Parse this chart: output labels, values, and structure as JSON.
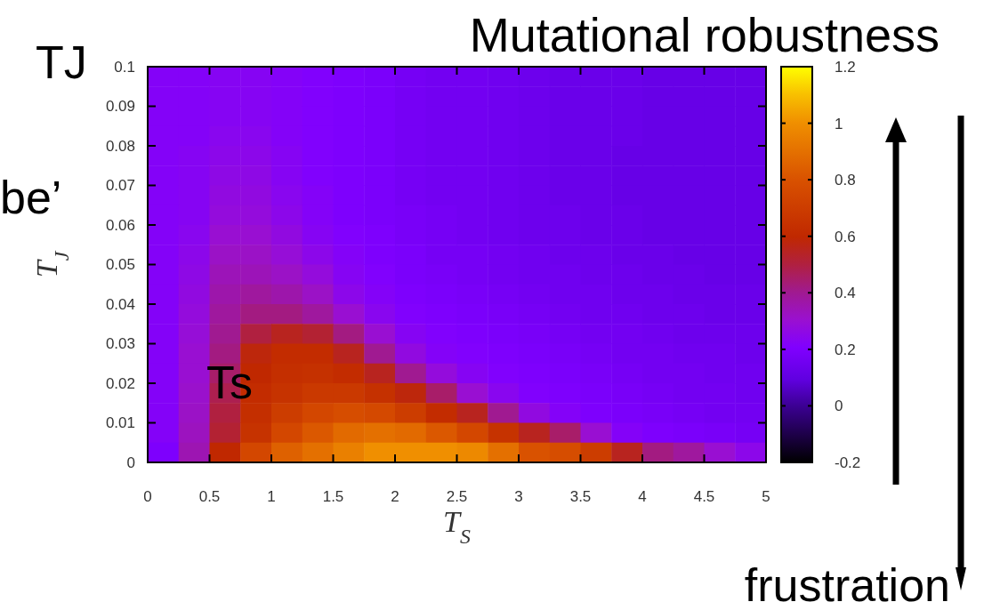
{
  "chart_data": {
    "type": "heatmap",
    "title": "Mutational robustness",
    "xlabel": "T$_{S}$",
    "ylabel": "T$_{J}$",
    "annotations": [
      "TJ",
      "be’",
      "Ts",
      "frustration"
    ],
    "x": [
      0.125,
      0.375,
      0.625,
      0.875,
      1.125,
      1.375,
      1.625,
      1.875,
      2.125,
      2.375,
      2.625,
      2.875,
      3.125,
      3.375,
      3.625,
      3.875,
      4.125,
      4.375,
      4.625,
      4.875
    ],
    "y": [
      0.0975,
      0.0925,
      0.0875,
      0.0825,
      0.0775,
      0.0725,
      0.0675,
      0.0625,
      0.0575,
      0.0525,
      0.0475,
      0.0425,
      0.0375,
      0.0325,
      0.0275,
      0.0225,
      0.0175,
      0.0125,
      0.0075,
      0.0025
    ],
    "xlim": [
      0,
      5
    ],
    "xticks": [
      0,
      0.5,
      1,
      1.5,
      2,
      2.5,
      3,
      3.5,
      4,
      4.5,
      5
    ],
    "ylim": [
      0,
      0.1
    ],
    "yticks": [
      0,
      0.01,
      0.02,
      0.03,
      0.04,
      0.05,
      0.06,
      0.07,
      0.08,
      0.09,
      0.1
    ],
    "clim": [
      -0.2,
      1.2
    ],
    "cticks": [
      -0.2,
      0,
      0.2,
      0.4,
      0.6,
      0.8,
      1,
      1.2
    ],
    "cells": [
      [
        0.22,
        0.22,
        0.23,
        0.23,
        0.22,
        0.21,
        0.2,
        0.19,
        0.17,
        0.16,
        0.16,
        0.15,
        0.14,
        0.13,
        0.13,
        0.13,
        0.12,
        0.12,
        0.12,
        0.12
      ],
      [
        0.22,
        0.22,
        0.23,
        0.23,
        0.22,
        0.21,
        0.2,
        0.19,
        0.17,
        0.16,
        0.16,
        0.15,
        0.14,
        0.13,
        0.13,
        0.13,
        0.12,
        0.12,
        0.12,
        0.12
      ],
      [
        0.22,
        0.22,
        0.23,
        0.23,
        0.22,
        0.21,
        0.2,
        0.19,
        0.17,
        0.16,
        0.16,
        0.15,
        0.14,
        0.13,
        0.13,
        0.13,
        0.12,
        0.12,
        0.12,
        0.12
      ],
      [
        0.22,
        0.22,
        0.24,
        0.24,
        0.22,
        0.21,
        0.2,
        0.19,
        0.17,
        0.16,
        0.16,
        0.15,
        0.14,
        0.13,
        0.13,
        0.13,
        0.12,
        0.12,
        0.12,
        0.12
      ],
      [
        0.22,
        0.23,
        0.25,
        0.25,
        0.23,
        0.21,
        0.2,
        0.19,
        0.17,
        0.16,
        0.16,
        0.15,
        0.14,
        0.13,
        0.13,
        0.12,
        0.12,
        0.12,
        0.12,
        0.12
      ],
      [
        0.22,
        0.23,
        0.26,
        0.26,
        0.23,
        0.21,
        0.2,
        0.19,
        0.17,
        0.16,
        0.16,
        0.15,
        0.14,
        0.13,
        0.13,
        0.12,
        0.12,
        0.12,
        0.12,
        0.12
      ],
      [
        0.22,
        0.23,
        0.27,
        0.27,
        0.24,
        0.22,
        0.2,
        0.19,
        0.17,
        0.16,
        0.16,
        0.15,
        0.14,
        0.13,
        0.13,
        0.12,
        0.12,
        0.12,
        0.12,
        0.12
      ],
      [
        0.22,
        0.23,
        0.28,
        0.28,
        0.25,
        0.22,
        0.2,
        0.19,
        0.18,
        0.17,
        0.16,
        0.15,
        0.14,
        0.14,
        0.13,
        0.13,
        0.12,
        0.12,
        0.12,
        0.12
      ],
      [
        0.22,
        0.24,
        0.3,
        0.3,
        0.27,
        0.23,
        0.21,
        0.2,
        0.18,
        0.17,
        0.16,
        0.15,
        0.14,
        0.14,
        0.13,
        0.13,
        0.12,
        0.12,
        0.12,
        0.12
      ],
      [
        0.22,
        0.25,
        0.32,
        0.32,
        0.29,
        0.25,
        0.22,
        0.2,
        0.19,
        0.17,
        0.17,
        0.16,
        0.15,
        0.14,
        0.14,
        0.13,
        0.13,
        0.12,
        0.12,
        0.12
      ],
      [
        0.22,
        0.26,
        0.34,
        0.34,
        0.32,
        0.28,
        0.23,
        0.21,
        0.19,
        0.18,
        0.17,
        0.16,
        0.15,
        0.15,
        0.14,
        0.14,
        0.13,
        0.13,
        0.12,
        0.12
      ],
      [
        0.22,
        0.27,
        0.36,
        0.38,
        0.36,
        0.32,
        0.25,
        0.22,
        0.2,
        0.19,
        0.18,
        0.17,
        0.16,
        0.15,
        0.15,
        0.14,
        0.14,
        0.13,
        0.13,
        0.13
      ],
      [
        0.22,
        0.28,
        0.38,
        0.42,
        0.42,
        0.38,
        0.3,
        0.24,
        0.21,
        0.2,
        0.19,
        0.18,
        0.17,
        0.16,
        0.15,
        0.15,
        0.14,
        0.14,
        0.13,
        0.13
      ],
      [
        0.22,
        0.29,
        0.4,
        0.5,
        0.55,
        0.52,
        0.42,
        0.3,
        0.23,
        0.21,
        0.2,
        0.19,
        0.18,
        0.17,
        0.16,
        0.16,
        0.15,
        0.14,
        0.14,
        0.14
      ],
      [
        0.22,
        0.3,
        0.42,
        0.58,
        0.62,
        0.62,
        0.55,
        0.4,
        0.27,
        0.22,
        0.21,
        0.2,
        0.19,
        0.18,
        0.17,
        0.16,
        0.16,
        0.15,
        0.15,
        0.14
      ],
      [
        0.22,
        0.3,
        0.45,
        0.6,
        0.63,
        0.64,
        0.62,
        0.55,
        0.4,
        0.28,
        0.23,
        0.21,
        0.2,
        0.19,
        0.18,
        0.17,
        0.16,
        0.16,
        0.15,
        0.15
      ],
      [
        0.22,
        0.31,
        0.48,
        0.62,
        0.65,
        0.68,
        0.68,
        0.64,
        0.58,
        0.45,
        0.3,
        0.24,
        0.21,
        0.2,
        0.19,
        0.18,
        0.17,
        0.16,
        0.16,
        0.15
      ],
      [
        0.22,
        0.32,
        0.5,
        0.63,
        0.7,
        0.75,
        0.78,
        0.76,
        0.7,
        0.62,
        0.55,
        0.4,
        0.27,
        0.22,
        0.2,
        0.19,
        0.18,
        0.17,
        0.16,
        0.16
      ],
      [
        0.22,
        0.33,
        0.52,
        0.65,
        0.75,
        0.82,
        0.88,
        0.9,
        0.88,
        0.82,
        0.75,
        0.65,
        0.55,
        0.45,
        0.3,
        0.22,
        0.2,
        0.19,
        0.18,
        0.17
      ],
      [
        0.2,
        0.35,
        0.6,
        0.75,
        0.85,
        0.9,
        0.95,
        1.0,
        1.0,
        1.0,
        0.98,
        0.9,
        0.8,
        0.78,
        0.7,
        0.55,
        0.42,
        0.38,
        0.3,
        0.25
      ]
    ]
  }
}
